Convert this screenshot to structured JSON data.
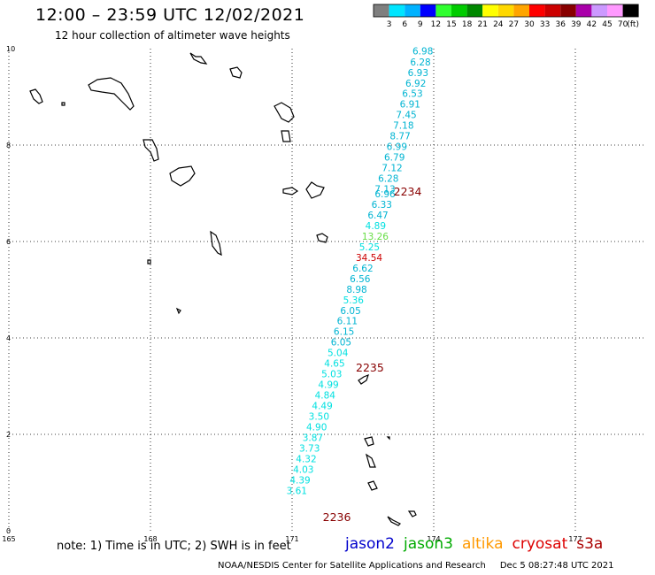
{
  "title": "12:00 – 23:59 UTC 12/02/2021",
  "subtitle": "12 hour collection of altimeter wave heights",
  "color_scale": {
    "labels": [
      "3",
      "6",
      "9",
      "12",
      "15",
      "18",
      "21",
      "24",
      "27",
      "30",
      "33",
      "36",
      "39",
      "42",
      "45",
      "70"
    ],
    "unit": "(ft)",
    "colors": [
      "#7f7f7f",
      "#00e5ff",
      "#00b2ff",
      "#0000ff",
      "#30ff30",
      "#00cc00",
      "#008800",
      "#ffff00",
      "#ffd800",
      "#ffa500",
      "#ff0000",
      "#cc0000",
      "#880000",
      "#aa00aa",
      "#cc99ff",
      "#ff99ff",
      "#000000"
    ]
  },
  "map": {
    "lon_ticks": [
      "165",
      "168",
      "171",
      "174",
      "177"
    ],
    "lat_ticks": [
      "0",
      "2",
      "4",
      "6",
      "8",
      "10"
    ],
    "lon_range": [
      165,
      178.5
    ],
    "lat_range": [
      0,
      10
    ]
  },
  "time_labels": [
    {
      "text": "2234",
      "lon": 173.15,
      "lat": 6.95
    },
    {
      "text": "2235",
      "lon": 172.35,
      "lat": 3.3
    },
    {
      "text": "2236",
      "lon": 171.65,
      "lat": 0.2
    }
  ],
  "swh_points": [
    {
      "lon": 173.55,
      "lat": 9.88,
      "v": "6.98",
      "c": "#00b4d2"
    },
    {
      "lon": 173.5,
      "lat": 9.65,
      "v": "6.28",
      "c": "#00b4d2"
    },
    {
      "lon": 173.45,
      "lat": 9.43,
      "v": "6.93",
      "c": "#00b4d2"
    },
    {
      "lon": 173.4,
      "lat": 9.21,
      "v": "6.92",
      "c": "#00b4d2"
    },
    {
      "lon": 173.33,
      "lat": 9.0,
      "v": "6.53",
      "c": "#00b4d2"
    },
    {
      "lon": 173.28,
      "lat": 8.78,
      "v": "6.91",
      "c": "#00b4d2"
    },
    {
      "lon": 173.2,
      "lat": 8.56,
      "v": "7.45",
      "c": "#00b4d2"
    },
    {
      "lon": 173.14,
      "lat": 8.34,
      "v": "7.18",
      "c": "#00b4d2"
    },
    {
      "lon": 173.07,
      "lat": 8.12,
      "v": "8.77",
      "c": "#00b4d2"
    },
    {
      "lon": 173.0,
      "lat": 7.9,
      "v": "6.99",
      "c": "#00b4d2"
    },
    {
      "lon": 172.95,
      "lat": 7.68,
      "v": "6.79",
      "c": "#00b4d2"
    },
    {
      "lon": 172.9,
      "lat": 7.46,
      "v": "7.12",
      "c": "#00b4d2"
    },
    {
      "lon": 172.82,
      "lat": 7.24,
      "v": "6.28",
      "c": "#00b4d2"
    },
    {
      "lon": 172.75,
      "lat": 7.02,
      "v": "7.13",
      "c": "#00b4d2"
    },
    {
      "lon": 172.75,
      "lat": 6.92,
      "v": "6.96",
      "c": "#00b4d2"
    },
    {
      "lon": 172.68,
      "lat": 6.7,
      "v": "6.33",
      "c": "#00b4d2"
    },
    {
      "lon": 172.6,
      "lat": 6.48,
      "v": "6.47",
      "c": "#00b4d2"
    },
    {
      "lon": 172.55,
      "lat": 6.26,
      "v": "4.89",
      "c": "#00e0e0"
    },
    {
      "lon": 172.48,
      "lat": 6.04,
      "v": "13.26",
      "c": "#66dd44"
    },
    {
      "lon": 172.42,
      "lat": 5.82,
      "v": "5.25",
      "c": "#00e0e0"
    },
    {
      "lon": 172.35,
      "lat": 5.6,
      "v": "34.54",
      "c": "#cc0000"
    },
    {
      "lon": 172.28,
      "lat": 5.38,
      "v": "6.62",
      "c": "#00b4d2"
    },
    {
      "lon": 172.22,
      "lat": 5.16,
      "v": "6.56",
      "c": "#00b4d2"
    },
    {
      "lon": 172.15,
      "lat": 4.94,
      "v": "8.98",
      "c": "#00b4d2"
    },
    {
      "lon": 172.08,
      "lat": 4.72,
      "v": "5.36",
      "c": "#00e0e0"
    },
    {
      "lon": 172.02,
      "lat": 4.5,
      "v": "6.05",
      "c": "#00b4d2"
    },
    {
      "lon": 171.95,
      "lat": 4.28,
      "v": "6.11",
      "c": "#00b4d2"
    },
    {
      "lon": 171.88,
      "lat": 4.06,
      "v": "6.15",
      "c": "#00b4d2"
    },
    {
      "lon": 171.82,
      "lat": 3.84,
      "v": "6.05",
      "c": "#00b4d2"
    },
    {
      "lon": 171.75,
      "lat": 3.62,
      "v": "5.04",
      "c": "#00e0e0"
    },
    {
      "lon": 171.68,
      "lat": 3.4,
      "v": "4.65",
      "c": "#00e0e0"
    },
    {
      "lon": 171.62,
      "lat": 3.18,
      "v": "5.03",
      "c": "#00e0e0"
    },
    {
      "lon": 171.55,
      "lat": 2.96,
      "v": "4.99",
      "c": "#00e0e0"
    },
    {
      "lon": 171.48,
      "lat": 2.74,
      "v": "4.84",
      "c": "#00e0e0"
    },
    {
      "lon": 171.42,
      "lat": 2.52,
      "v": "4.49",
      "c": "#00e0e0"
    },
    {
      "lon": 171.35,
      "lat": 2.3,
      "v": "3.50",
      "c": "#00e0e0"
    },
    {
      "lon": 171.3,
      "lat": 2.08,
      "v": "4.90",
      "c": "#00e0e0"
    },
    {
      "lon": 171.22,
      "lat": 1.86,
      "v": "3.87",
      "c": "#00e0e0"
    },
    {
      "lon": 171.15,
      "lat": 1.64,
      "v": "3.73",
      "c": "#00e0e0"
    },
    {
      "lon": 171.08,
      "lat": 1.42,
      "v": "4.32",
      "c": "#00e0e0"
    },
    {
      "lon": 171.02,
      "lat": 1.2,
      "v": "4.03",
      "c": "#00e0e0"
    },
    {
      "lon": 170.95,
      "lat": 0.98,
      "v": "4.39",
      "c": "#00e0e0"
    },
    {
      "lon": 170.88,
      "lat": 0.76,
      "v": "3.61",
      "c": "#00e0e0"
    }
  ],
  "note": "note:  1) Time is in UTC; 2) SWH is in feet",
  "satellites": [
    {
      "name": "jason2",
      "color": "#0000cc"
    },
    {
      "name": "jason3",
      "color": "#00aa00"
    },
    {
      "name": "altika",
      "color": "#ff9900"
    },
    {
      "name": "cryosat",
      "color": "#dd0000"
    },
    {
      "name": "s3a",
      "color": "#aa0000"
    }
  ],
  "footer": {
    "center": "NOAA/NESDIS Center for Satellite Applications and Research",
    "timestamp": "Dec  5 08:27:48 UTC 2021"
  }
}
